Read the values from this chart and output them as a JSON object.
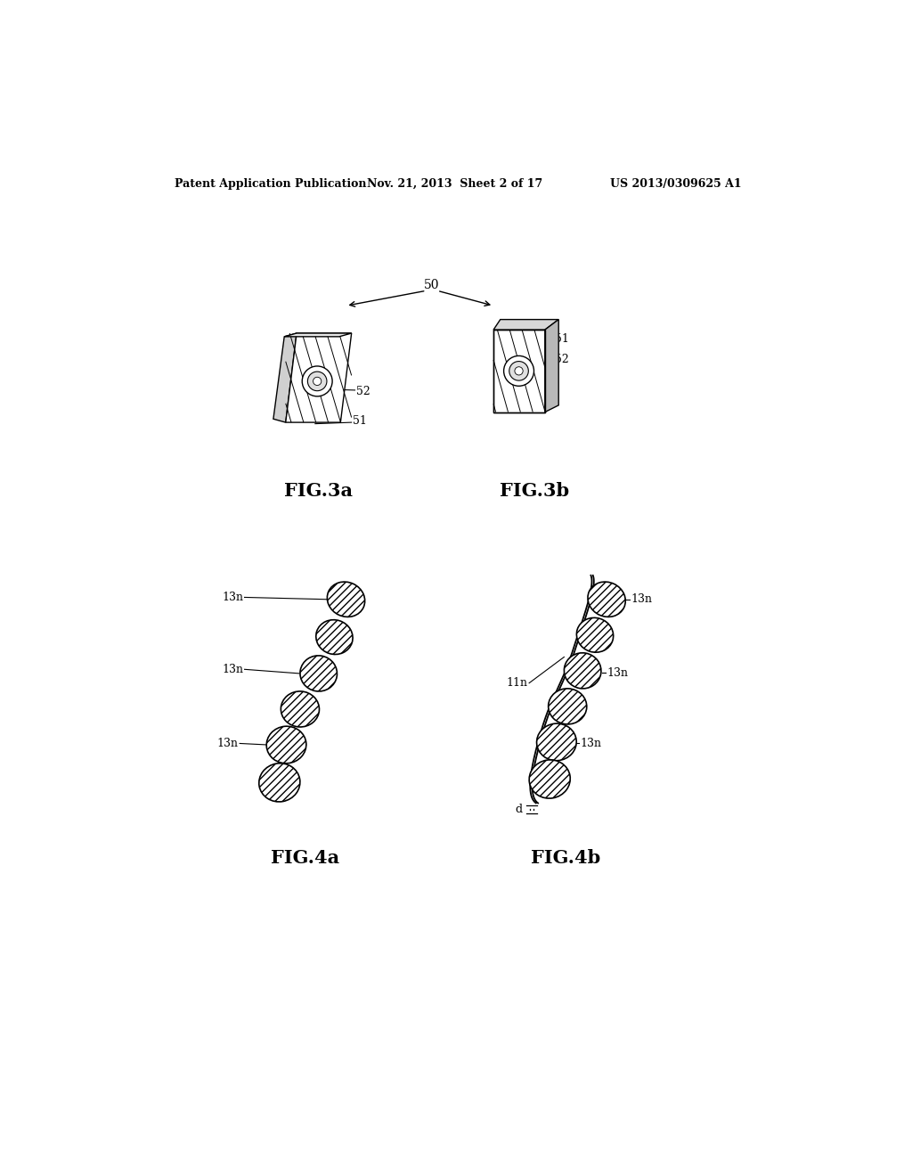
{
  "bg_color": "#ffffff",
  "header_text": "Patent Application Publication",
  "header_date": "Nov. 21, 2013  Sheet 2 of 17",
  "header_patent": "US 2013/0309625 A1",
  "fig3a_label": "FIG.3a",
  "fig3b_label": "FIG.3b",
  "fig4a_label": "FIG.4a",
  "fig4b_label": "FIG.4b",
  "label_50": "50",
  "label_51": "51",
  "label_52": "52",
  "label_13n": "13n",
  "label_11n": "11n",
  "label_d": "d"
}
